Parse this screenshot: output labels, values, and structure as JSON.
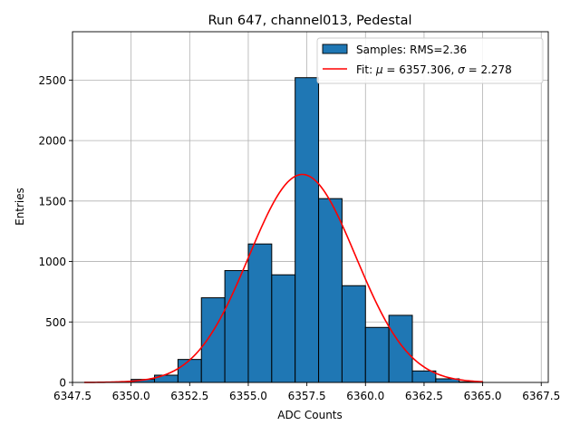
{
  "chart_data": {
    "type": "bar",
    "title": "Run 647, channel013, Pedestal",
    "xlabel": "ADC Counts",
    "ylabel": "Entries",
    "xlim": [
      6347.5,
      6367.8
    ],
    "ylim": [
      0,
      2900
    ],
    "xticks": [
      6347.5,
      6350.0,
      6352.5,
      6355.0,
      6357.5,
      6360.0,
      6362.5,
      6365.0,
      6367.5
    ],
    "xtick_labels": [
      "6347.5",
      "6350.0",
      "6352.5",
      "6355.0",
      "6357.5",
      "6360.0",
      "6362.5",
      "6365.0",
      "6367.5"
    ],
    "yticks": [
      0,
      500,
      1000,
      1500,
      2000,
      2500
    ],
    "ytick_labels": [
      "0",
      "500",
      "1000",
      "1500",
      "2000",
      "2500"
    ],
    "grid": true,
    "legend_position": "top-right",
    "bin_width": 1,
    "bins": [
      {
        "left": 6350,
        "count": 25
      },
      {
        "left": 6351,
        "count": 60
      },
      {
        "left": 6352,
        "count": 190
      },
      {
        "left": 6353,
        "count": 700
      },
      {
        "left": 6354,
        "count": 925
      },
      {
        "left": 6355,
        "count": 1145
      },
      {
        "left": 6356,
        "count": 890
      },
      {
        "left": 6357,
        "count": 2520
      },
      {
        "left": 6358,
        "count": 1520
      },
      {
        "left": 6359,
        "count": 800
      },
      {
        "left": 6360,
        "count": 455
      },
      {
        "left": 6361,
        "count": 555
      },
      {
        "left": 6362,
        "count": 95
      },
      {
        "left": 6363,
        "count": 30
      },
      {
        "left": 6364,
        "count": 5
      }
    ],
    "fit": {
      "mu": 6357.306,
      "sigma": 2.278,
      "amplitude": 1720,
      "x_range": [
        6348,
        6365
      ]
    },
    "series": [
      {
        "name": "Samples: RMS=2.36",
        "kind": "histogram",
        "color": "#1f77b4",
        "edgecolor": "#000000"
      },
      {
        "name": "Fit",
        "kind": "line",
        "color": "#ff0000"
      }
    ],
    "legend": {
      "samples_label": "Samples: RMS=2.36",
      "fit_prefix": "Fit: ",
      "mu_symbol": "μ",
      "mu_text": " = 6357.306, ",
      "sigma_symbol": "σ",
      "sigma_text": " = 2.278"
    }
  }
}
